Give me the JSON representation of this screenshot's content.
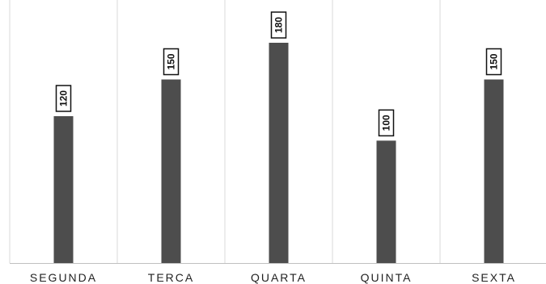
{
  "chart_data": {
    "type": "bar",
    "categories": [
      "SEGUNDA",
      "TERCA",
      "QUARTA",
      "QUINTA",
      "SEXTA"
    ],
    "values": [
      120,
      150,
      180,
      100,
      150
    ],
    "data_labels": [
      "120",
      "150",
      "180",
      "100",
      "150"
    ],
    "ylim": [
      0,
      180
    ],
    "grid": "vertical separators only",
    "legend": "none",
    "title": "",
    "xlabel": "",
    "ylabel": "",
    "colors": {
      "bar": "#4d4d4d",
      "grid": "#d9d9d9",
      "axis": "#bfbfbf",
      "label_box_border": "#111111",
      "label_box_fill": "#ffffff",
      "text": "#222222"
    }
  }
}
